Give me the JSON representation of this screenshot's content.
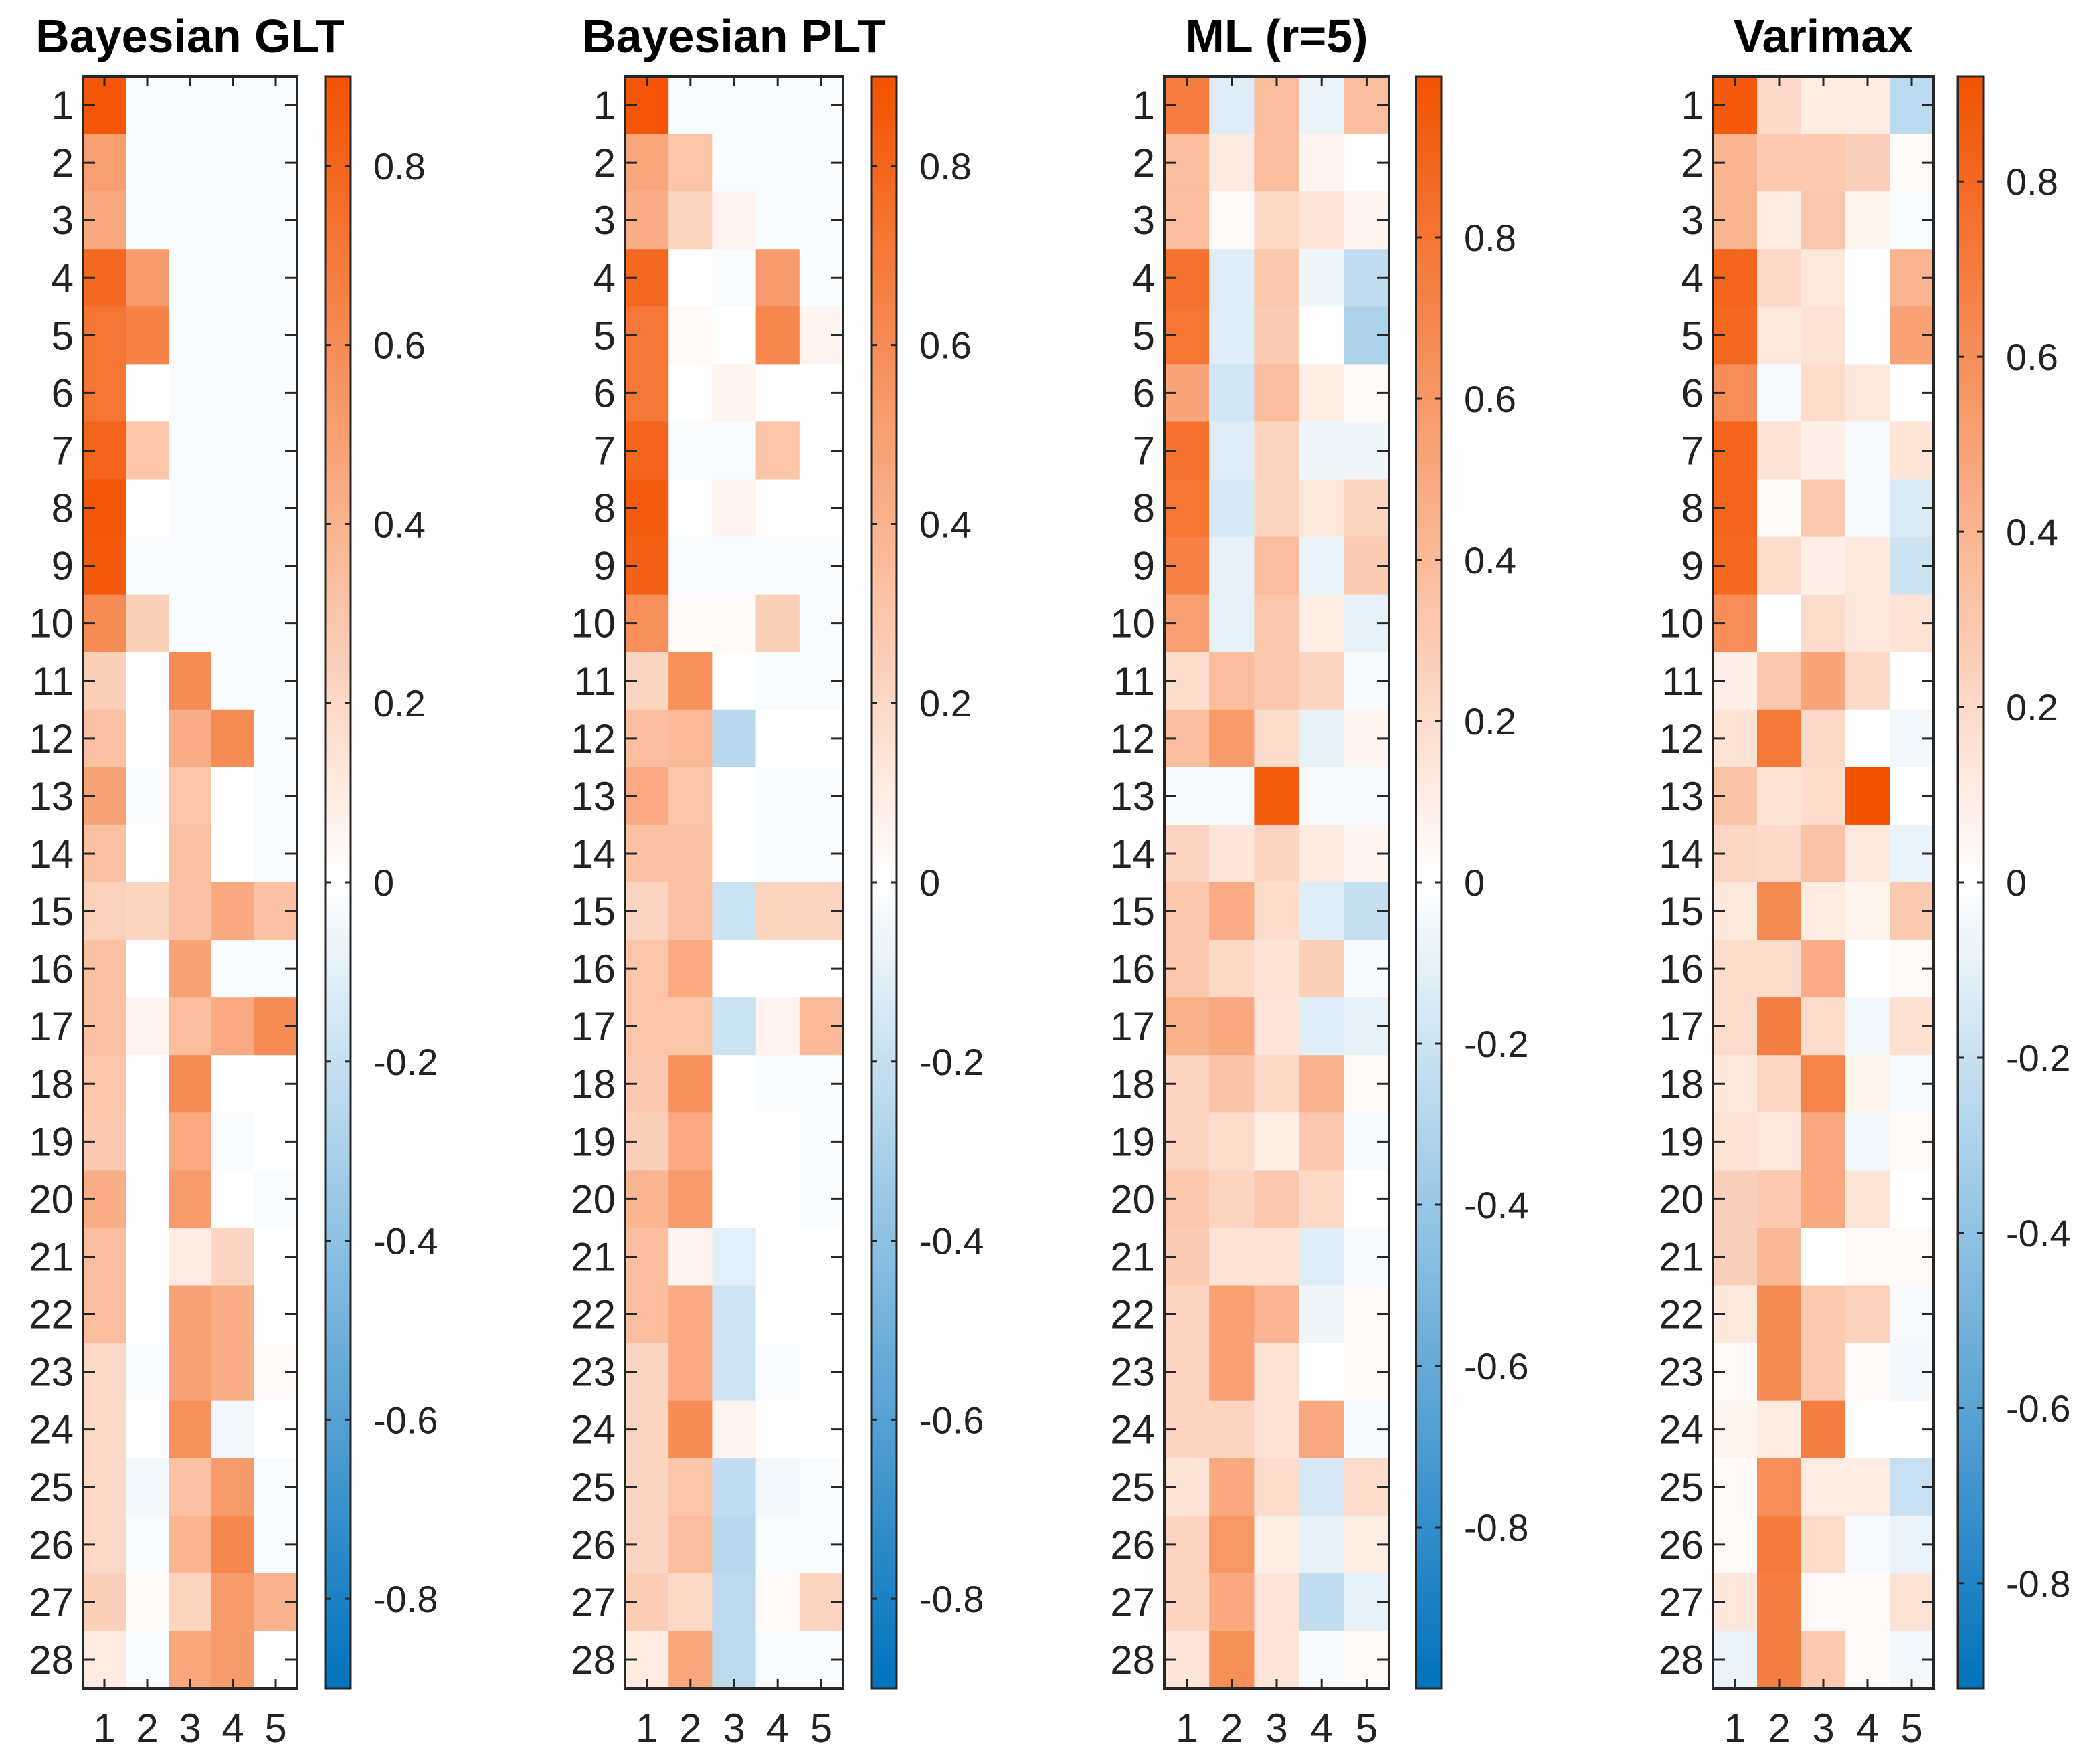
{
  "chart_data": [
    {
      "type": "heatmap",
      "title": "Bayesian GLT",
      "row_labels": [
        "1",
        "2",
        "3",
        "4",
        "5",
        "6",
        "7",
        "8",
        "9",
        "10",
        "11",
        "12",
        "13",
        "14",
        "15",
        "16",
        "17",
        "18",
        "19",
        "20",
        "21",
        "22",
        "23",
        "24",
        "25",
        "26",
        "27",
        "28"
      ],
      "col_labels": [
        "1",
        "2",
        "3",
        "4",
        "5"
      ],
      "clim": [
        -0.9,
        0.9
      ],
      "colorbar_ticks": [
        0.8,
        0.6,
        0.4,
        0.2,
        0,
        -0.2,
        -0.4,
        -0.6,
        -0.8
      ],
      "colorbar_tick_labels": [
        "0.8",
        "0.6",
        "0.4",
        "0.2",
        "0",
        "-0.2",
        "-0.4",
        "-0.6",
        "-0.8"
      ],
      "values": [
        [
          0.88,
          -0.02,
          -0.02,
          -0.02,
          -0.02
        ],
        [
          0.5,
          -0.02,
          -0.02,
          -0.02,
          -0.02
        ],
        [
          0.45,
          -0.02,
          -0.02,
          -0.02,
          -0.02
        ],
        [
          0.78,
          0.52,
          -0.02,
          -0.02,
          -0.02
        ],
        [
          0.72,
          0.65,
          -0.02,
          -0.02,
          -0.02
        ],
        [
          0.72,
          0.0,
          -0.02,
          -0.02,
          -0.02
        ],
        [
          0.8,
          0.3,
          -0.02,
          -0.02,
          -0.02
        ],
        [
          0.88,
          0.0,
          -0.02,
          -0.02,
          -0.02
        ],
        [
          0.86,
          -0.02,
          -0.02,
          -0.02,
          -0.02
        ],
        [
          0.6,
          0.25,
          -0.02,
          -0.02,
          -0.02
        ],
        [
          0.25,
          0.0,
          0.6,
          -0.02,
          -0.02
        ],
        [
          0.32,
          0.0,
          0.42,
          0.6,
          -0.02
        ],
        [
          0.48,
          -0.02,
          0.3,
          0.0,
          -0.02
        ],
        [
          0.33,
          0.0,
          0.33,
          0.0,
          -0.02
        ],
        [
          0.24,
          0.22,
          0.32,
          0.45,
          0.32
        ],
        [
          0.33,
          0.0,
          0.48,
          -0.02,
          -0.02
        ],
        [
          0.33,
          0.06,
          0.34,
          0.44,
          0.6
        ],
        [
          0.3,
          0.0,
          0.6,
          0.0,
          0.0
        ],
        [
          0.28,
          0.0,
          0.44,
          -0.02,
          0.0
        ],
        [
          0.42,
          0.0,
          0.52,
          0.0,
          -0.02
        ],
        [
          0.34,
          0.0,
          0.1,
          0.22,
          0.0
        ],
        [
          0.34,
          0.0,
          0.48,
          0.42,
          0.0
        ],
        [
          0.2,
          -0.02,
          0.48,
          0.42,
          0.03
        ],
        [
          0.2,
          0.0,
          0.58,
          -0.05,
          0.0
        ],
        [
          0.2,
          -0.05,
          0.32,
          0.52,
          -0.02
        ],
        [
          0.2,
          -0.02,
          0.38,
          0.62,
          -0.02
        ],
        [
          0.25,
          0.03,
          0.22,
          0.52,
          0.4
        ],
        [
          0.1,
          -0.02,
          0.46,
          0.52,
          0.0
        ]
      ]
    },
    {
      "type": "heatmap",
      "title": "Bayesian PLT",
      "row_labels": [
        "1",
        "2",
        "3",
        "4",
        "5",
        "6",
        "7",
        "8",
        "9",
        "10",
        "11",
        "12",
        "13",
        "14",
        "15",
        "16",
        "17",
        "18",
        "19",
        "20",
        "21",
        "22",
        "23",
        "24",
        "25",
        "26",
        "27",
        "28"
      ],
      "col_labels": [
        "1",
        "2",
        "3",
        "4",
        "5"
      ],
      "clim": [
        -0.9,
        0.9
      ],
      "colorbar_ticks": [
        0.8,
        0.6,
        0.4,
        0.2,
        0,
        -0.2,
        -0.4,
        -0.6,
        -0.8
      ],
      "colorbar_tick_labels": [
        "0.8",
        "0.6",
        "0.4",
        "0.2",
        "0",
        "-0.2",
        "-0.4",
        "-0.6",
        "-0.8"
      ],
      "values": [
        [
          0.88,
          -0.02,
          -0.02,
          -0.02,
          -0.02
        ],
        [
          0.46,
          0.3,
          -0.02,
          -0.02,
          -0.02
        ],
        [
          0.42,
          0.22,
          0.06,
          -0.02,
          -0.02
        ],
        [
          0.78,
          0.0,
          -0.02,
          0.52,
          -0.02
        ],
        [
          0.7,
          0.03,
          0.0,
          0.62,
          0.06
        ],
        [
          0.7,
          0.0,
          0.06,
          0.0,
          0.0
        ],
        [
          0.8,
          -0.02,
          -0.02,
          0.3,
          0.0
        ],
        [
          0.85,
          0.0,
          0.06,
          0.0,
          0.0
        ],
        [
          0.82,
          -0.02,
          -0.02,
          -0.02,
          -0.02
        ],
        [
          0.58,
          0.03,
          0.03,
          0.25,
          -0.02
        ],
        [
          0.22,
          0.58,
          0.0,
          -0.02,
          -0.02
        ],
        [
          0.34,
          0.36,
          -0.25,
          0.0,
          0.0
        ],
        [
          0.44,
          0.3,
          0.0,
          -0.02,
          -0.02
        ],
        [
          0.32,
          0.32,
          0.0,
          -0.02,
          -0.02
        ],
        [
          0.22,
          0.32,
          -0.18,
          0.22,
          0.22
        ],
        [
          0.3,
          0.44,
          0.0,
          0.0,
          0.0
        ],
        [
          0.3,
          0.3,
          -0.18,
          0.06,
          0.36
        ],
        [
          0.28,
          0.58,
          0.0,
          -0.02,
          -0.02
        ],
        [
          0.25,
          0.44,
          0.0,
          0.0,
          -0.02
        ],
        [
          0.38,
          0.52,
          0.0,
          0.0,
          -0.02
        ],
        [
          0.34,
          0.06,
          -0.1,
          0.0,
          0.0
        ],
        [
          0.34,
          0.44,
          -0.17,
          0.0,
          0.0
        ],
        [
          0.22,
          0.44,
          -0.17,
          -0.02,
          0.0
        ],
        [
          0.22,
          0.6,
          0.06,
          0.0,
          0.0
        ],
        [
          0.22,
          0.3,
          -0.22,
          -0.05,
          -0.02
        ],
        [
          0.22,
          0.34,
          -0.25,
          -0.02,
          -0.02
        ],
        [
          0.26,
          0.2,
          -0.23,
          0.03,
          0.22
        ],
        [
          0.1,
          0.46,
          -0.23,
          -0.02,
          -0.02
        ]
      ]
    },
    {
      "type": "heatmap",
      "title": "ML (r=5)",
      "row_labels": [
        "1",
        "2",
        "3",
        "4",
        "5",
        "6",
        "7",
        "8",
        "9",
        "10",
        "11",
        "12",
        "13",
        "14",
        "15",
        "16",
        "17",
        "18",
        "19",
        "20",
        "21",
        "22",
        "23",
        "24",
        "25",
        "26",
        "27",
        "28"
      ],
      "col_labels": [
        "1",
        "2",
        "3",
        "4",
        "5"
      ],
      "clim": [
        -1.0,
        1.0
      ],
      "colorbar_ticks": [
        0.8,
        0.6,
        0.4,
        0.2,
        0,
        -0.2,
        -0.4,
        -0.6,
        -0.8
      ],
      "colorbar_tick_labels": [
        "0.8",
        "0.6",
        "0.4",
        "0.2",
        "0",
        "-0.2",
        "-0.4",
        "-0.6",
        "-0.8"
      ],
      "values": [
        [
          0.75,
          -0.13,
          0.38,
          -0.08,
          0.38
        ],
        [
          0.38,
          0.12,
          0.38,
          0.06,
          0.0
        ],
        [
          0.38,
          0.03,
          0.22,
          0.15,
          0.06
        ],
        [
          0.82,
          -0.13,
          0.32,
          -0.06,
          -0.24
        ],
        [
          0.8,
          -0.13,
          0.3,
          0.0,
          -0.32
        ],
        [
          0.52,
          -0.18,
          0.38,
          0.1,
          0.03
        ],
        [
          0.82,
          -0.13,
          0.25,
          -0.06,
          -0.06
        ],
        [
          0.8,
          -0.16,
          0.25,
          0.14,
          0.25
        ],
        [
          0.72,
          -0.1,
          0.38,
          -0.08,
          0.3
        ],
        [
          0.55,
          -0.1,
          0.32,
          0.1,
          -0.1
        ],
        [
          0.2,
          0.38,
          0.32,
          0.25,
          -0.03
        ],
        [
          0.38,
          0.58,
          0.2,
          -0.1,
          0.06
        ],
        [
          -0.03,
          -0.03,
          0.95,
          -0.03,
          -0.03
        ],
        [
          0.25,
          0.15,
          0.25,
          0.12,
          0.06
        ],
        [
          0.32,
          0.48,
          0.2,
          -0.13,
          -0.22
        ],
        [
          0.32,
          0.22,
          0.16,
          0.28,
          -0.03
        ],
        [
          0.45,
          0.5,
          0.15,
          -0.13,
          -0.1
        ],
        [
          0.25,
          0.34,
          0.22,
          0.44,
          0.03
        ],
        [
          0.25,
          0.2,
          0.1,
          0.32,
          -0.03
        ],
        [
          0.32,
          0.25,
          0.32,
          0.22,
          0.0
        ],
        [
          0.3,
          0.16,
          0.16,
          -0.13,
          -0.03
        ],
        [
          0.25,
          0.55,
          0.42,
          -0.06,
          0.03
        ],
        [
          0.25,
          0.55,
          0.16,
          0.0,
          0.03
        ],
        [
          0.25,
          0.25,
          0.16,
          0.5,
          -0.03
        ],
        [
          0.16,
          0.5,
          0.2,
          -0.16,
          0.2
        ],
        [
          0.25,
          0.6,
          0.1,
          -0.1,
          0.1
        ],
        [
          0.25,
          0.5,
          0.15,
          -0.24,
          -0.1
        ],
        [
          0.15,
          0.65,
          0.15,
          -0.03,
          0.03
        ]
      ]
    },
    {
      "type": "heatmap",
      "title": "Varimax",
      "row_labels": [
        "1",
        "2",
        "3",
        "4",
        "5",
        "6",
        "7",
        "8",
        "9",
        "10",
        "11",
        "12",
        "13",
        "14",
        "15",
        "16",
        "17",
        "18",
        "19",
        "20",
        "21",
        "22",
        "23",
        "24",
        "25",
        "26",
        "27",
        "28"
      ],
      "col_labels": [
        "1",
        "2",
        "3",
        "4",
        "5"
      ],
      "clim": [
        -0.92,
        0.92
      ],
      "colorbar_ticks": [
        0.8,
        0.6,
        0.4,
        0.2,
        0,
        -0.2,
        -0.4,
        -0.6,
        -0.8
      ],
      "colorbar_tick_labels": [
        "0.8",
        "0.6",
        "0.4",
        "0.2",
        "0",
        "-0.2",
        "-0.4",
        "-0.6",
        "-0.8"
      ],
      "values": [
        [
          0.88,
          0.2,
          0.1,
          0.1,
          -0.24
        ],
        [
          0.4,
          0.28,
          0.28,
          0.25,
          0.03
        ],
        [
          0.4,
          0.1,
          0.3,
          0.06,
          -0.02
        ],
        [
          0.82,
          0.2,
          0.12,
          0.0,
          0.4
        ],
        [
          0.8,
          0.12,
          0.15,
          0.0,
          0.5
        ],
        [
          0.6,
          -0.03,
          0.18,
          0.12,
          0.0
        ],
        [
          0.82,
          0.15,
          0.08,
          -0.03,
          0.14
        ],
        [
          0.82,
          0.03,
          0.28,
          -0.03,
          -0.13
        ],
        [
          0.8,
          0.18,
          0.08,
          0.12,
          -0.18
        ],
        [
          0.6,
          0.0,
          0.18,
          0.12,
          0.15
        ],
        [
          0.08,
          0.3,
          0.48,
          0.2,
          0.0
        ],
        [
          0.15,
          0.72,
          0.2,
          0.0,
          -0.05
        ],
        [
          0.32,
          0.15,
          0.18,
          0.92,
          0.0
        ],
        [
          0.22,
          0.2,
          0.32,
          0.12,
          -0.08
        ],
        [
          0.12,
          0.62,
          0.1,
          0.06,
          0.28
        ],
        [
          0.18,
          0.18,
          0.44,
          0.0,
          0.03
        ],
        [
          0.18,
          0.68,
          0.18,
          -0.05,
          0.16
        ],
        [
          0.12,
          0.22,
          0.65,
          0.06,
          -0.03
        ],
        [
          0.15,
          0.12,
          0.46,
          -0.05,
          0.03
        ],
        [
          0.25,
          0.28,
          0.46,
          0.14,
          0.0
        ],
        [
          0.25,
          0.38,
          0.0,
          0.03,
          0.03
        ],
        [
          0.12,
          0.62,
          0.28,
          0.24,
          -0.03
        ],
        [
          0.03,
          0.62,
          0.28,
          0.03,
          -0.05
        ],
        [
          0.06,
          0.1,
          0.68,
          0.0,
          0.0
        ],
        [
          0.03,
          0.6,
          0.1,
          0.1,
          -0.2
        ],
        [
          0.03,
          0.7,
          0.18,
          -0.03,
          -0.08
        ],
        [
          0.12,
          0.68,
          0.03,
          0.03,
          0.15
        ],
        [
          -0.08,
          0.68,
          0.28,
          0.03,
          -0.05
        ]
      ]
    }
  ],
  "colors": {
    "positive_max": "#F25200",
    "zero": "#FFFFFF",
    "negative_max": "#0072BD",
    "axis": "#262626"
  }
}
